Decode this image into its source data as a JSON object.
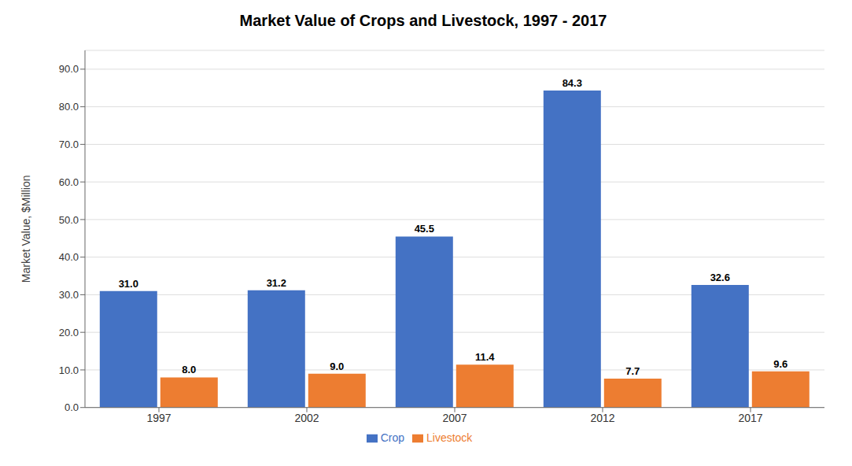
{
  "chart_data": {
    "type": "bar",
    "title": "Market Value of Crops and Livestock, 1997 - 2017",
    "categories": [
      "1997",
      "2002",
      "2007",
      "2012",
      "2017"
    ],
    "series": [
      {
        "name": "Crop",
        "color": "#4472C4",
        "values": [
          31.0,
          31.2,
          45.5,
          84.3,
          32.6
        ],
        "value_labels": [
          "31.0",
          "31.2",
          "45.5",
          "84.3",
          "32.6"
        ]
      },
      {
        "name": "Livestock",
        "color": "#ED7D31",
        "values": [
          8.0,
          9.0,
          11.4,
          7.7,
          9.6
        ],
        "value_labels": [
          "8.0",
          "9.0",
          "11.4",
          "7.7",
          "9.6"
        ]
      }
    ],
    "ylabel": "Market Value, $Million",
    "ylim": [
      0,
      95
    ],
    "yticks": [
      {
        "value": 0,
        "label": "0.0"
      },
      {
        "value": 10,
        "label": "10.0"
      },
      {
        "value": 20,
        "label": "20.0"
      },
      {
        "value": 30,
        "label": "30.0"
      },
      {
        "value": 40,
        "label": "40.0"
      },
      {
        "value": 50,
        "label": "50.0"
      },
      {
        "value": 60,
        "label": "60.0"
      },
      {
        "value": 70,
        "label": "70.0"
      },
      {
        "value": 80,
        "label": "80.0"
      },
      {
        "value": 90,
        "label": "90.0"
      }
    ],
    "grid": true,
    "legend": "bottom",
    "data_labels": true
  }
}
